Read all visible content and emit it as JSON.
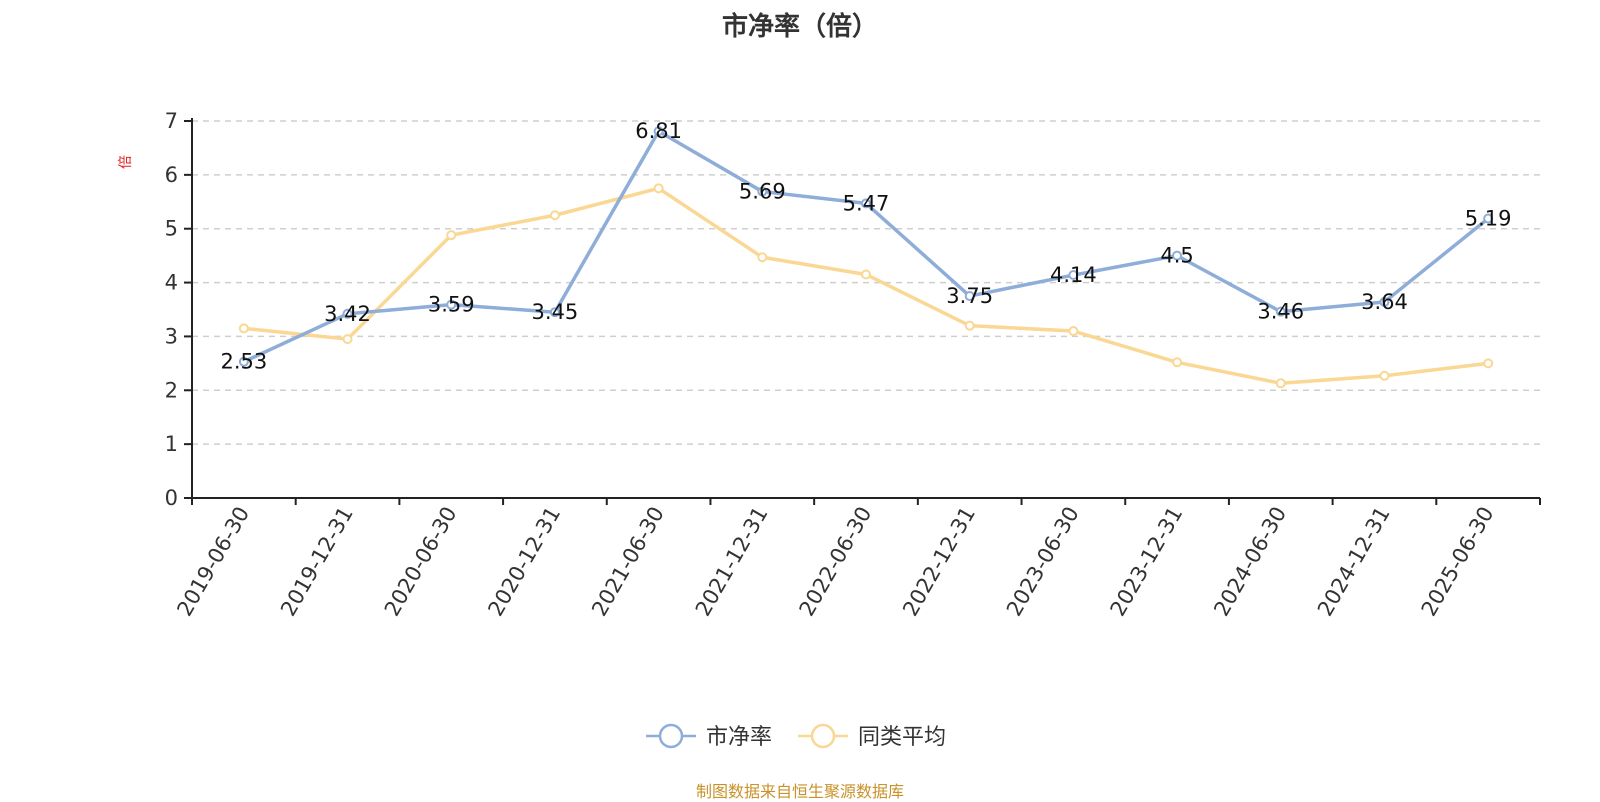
{
  "chart_data": {
    "type": "line",
    "title": "市净率（倍）",
    "ylabel": "倍",
    "ylim": [
      0,
      7
    ],
    "yticks": [
      0,
      1,
      2,
      3,
      4,
      5,
      6,
      7
    ],
    "grid": true,
    "legend_position": "bottom",
    "categories": [
      "2019-06-30",
      "2019-12-31",
      "2020-06-30",
      "2020-12-31",
      "2021-06-30",
      "2021-12-31",
      "2022-06-30",
      "2022-12-31",
      "2023-06-30",
      "2023-12-31",
      "2024-06-30",
      "2024-12-31",
      "2025-06-30"
    ],
    "series": [
      {
        "name": "市净率",
        "color": "#8eadd8",
        "values": [
          2.53,
          3.42,
          3.59,
          3.45,
          6.81,
          5.69,
          5.47,
          3.75,
          4.14,
          4.5,
          3.46,
          3.64,
          5.19
        ],
        "labels": [
          "2.53",
          "3.42",
          "3.59",
          "3.45",
          "6.81",
          "5.69",
          "5.47",
          "3.75",
          "4.14",
          "4.5",
          "3.46",
          "3.64",
          "5.19"
        ]
      },
      {
        "name": "同类平均",
        "color": "#fad793",
        "values": [
          3.15,
          2.95,
          4.88,
          5.25,
          5.75,
          4.47,
          4.15,
          3.2,
          3.1,
          2.52,
          2.13,
          2.27,
          2.5
        ]
      }
    ]
  },
  "footer": "制图数据来自恒生聚源数据库"
}
